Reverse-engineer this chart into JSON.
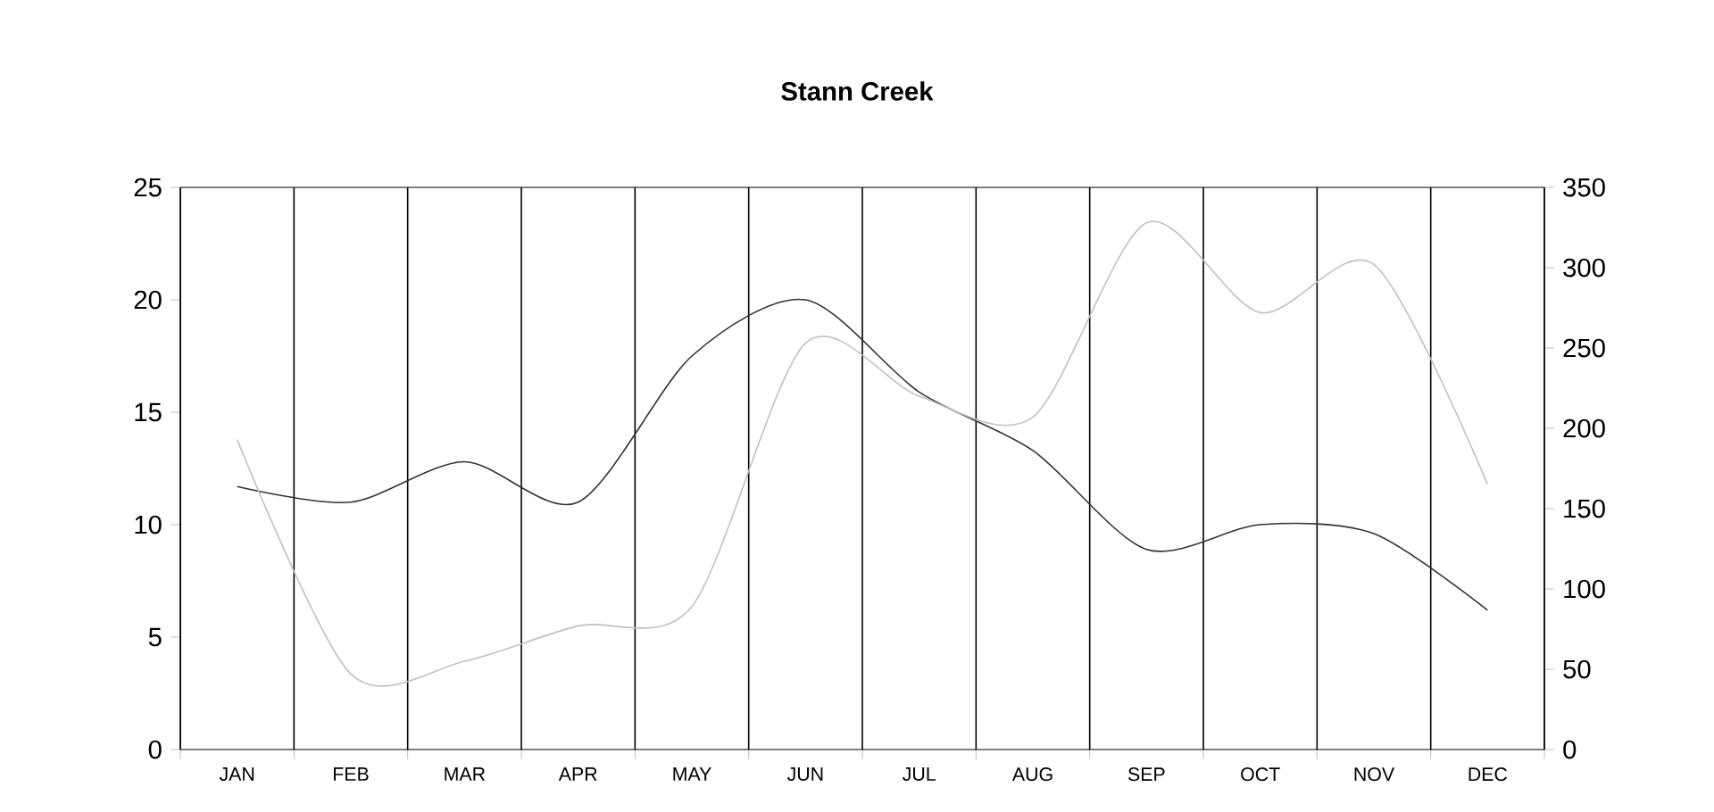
{
  "chart_data": {
    "type": "line",
    "title": "Stann Creek",
    "categories": [
      "JAN",
      "FEB",
      "MAR",
      "APR",
      "MAY",
      "JUN",
      "JUL",
      "AUG",
      "SEP",
      "OCT",
      "NOV",
      "DEC"
    ],
    "series": [
      {
        "color": "#333333",
        "values": [
          11.7,
          11.0,
          12.8,
          11.0,
          17.5,
          20.0,
          15.9,
          13.3,
          8.9,
          10.0,
          9.6,
          6.2
        ]
      },
      {
        "color": "#c0c0c0",
        "axis": "y2",
        "values": [
          193,
          47,
          55,
          77,
          89,
          253,
          220,
          207,
          328,
          272,
          302,
          165
        ]
      }
    ],
    "ylim": [
      0,
      25
    ],
    "yticks": [
      0,
      5,
      10,
      15,
      20,
      25
    ],
    "y2lim": [
      0,
      350
    ],
    "y2ticks": [
      0,
      50,
      100,
      150,
      200,
      250,
      300,
      350
    ],
    "grid": "x",
    "marker": "none",
    "line_style": "solid"
  }
}
